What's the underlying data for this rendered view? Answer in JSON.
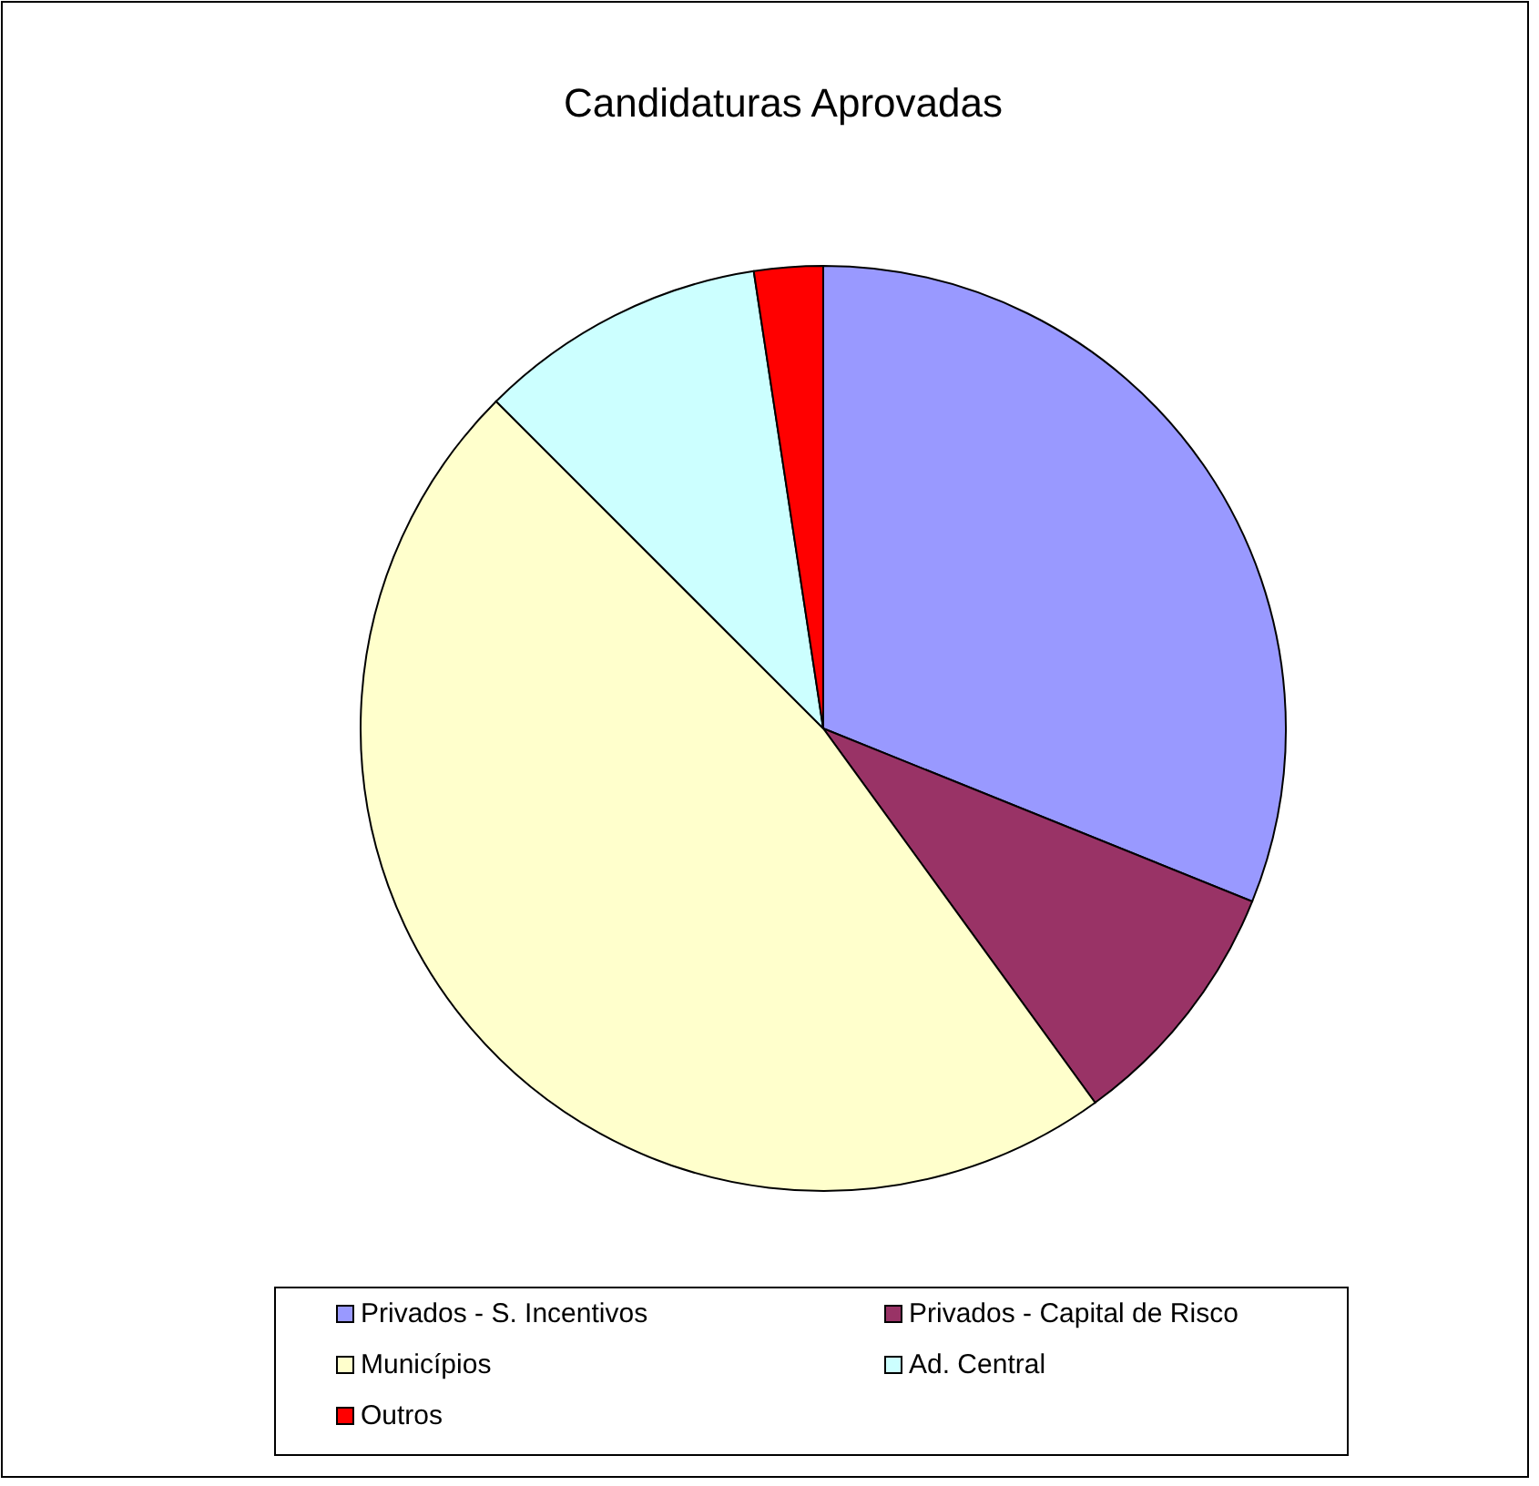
{
  "chart_data": {
    "type": "pie",
    "title": "Candidaturas Aprovadas",
    "categories": [
      "Privados - S. Incentivos",
      "Privados - Capital de Risco",
      "Municípios",
      "Ad. Central",
      "Outros"
    ],
    "values": [
      31.1,
      8.9,
      47.5,
      10.1,
      2.4
    ],
    "colors": [
      "#9999ff",
      "#993366",
      "#ffffcc",
      "#ccffff",
      "#ff0000"
    ],
    "legend": "bottom"
  }
}
